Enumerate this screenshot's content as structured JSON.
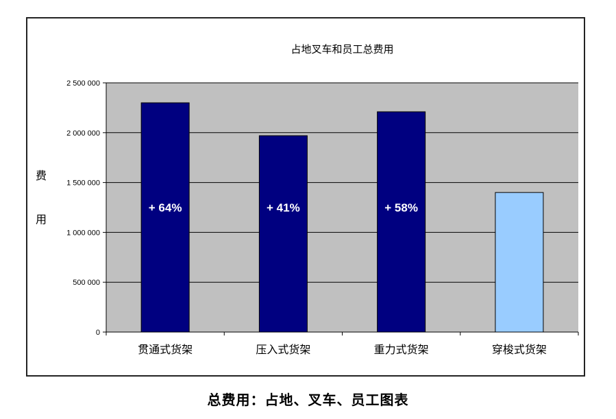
{
  "caption": "总费用：占地、叉车、员工图表",
  "chart_data": {
    "type": "bar",
    "title": "占地叉车和员工总费用",
    "ylabel": "费用",
    "xlabel": "",
    "categories": [
      "贯通式货架",
      "压入式货架",
      "重力式货架",
      "穿梭式货架"
    ],
    "values": [
      2300000,
      1970000,
      2210000,
      1400000
    ],
    "data_labels": [
      "+ 64%",
      "+ 41%",
      "+ 58%",
      ""
    ],
    "ylim": [
      0,
      2500000
    ],
    "yticks": [
      0,
      500000,
      1000000,
      1500000,
      2000000,
      2500000
    ],
    "ytick_labels": [
      "0",
      "500 000",
      "1 000 000",
      "1 500 000",
      "2 000 000",
      "2 500 000"
    ],
    "grid": true,
    "legend": "none",
    "colors": {
      "plot_background": "#c0c0c0",
      "bar_dark": "#000080",
      "bar_highlight": "#99ccff",
      "grid": "#000000",
      "data_label": "#ffffff"
    },
    "bar_colors": [
      "#000080",
      "#000080",
      "#000080",
      "#99ccff"
    ]
  }
}
